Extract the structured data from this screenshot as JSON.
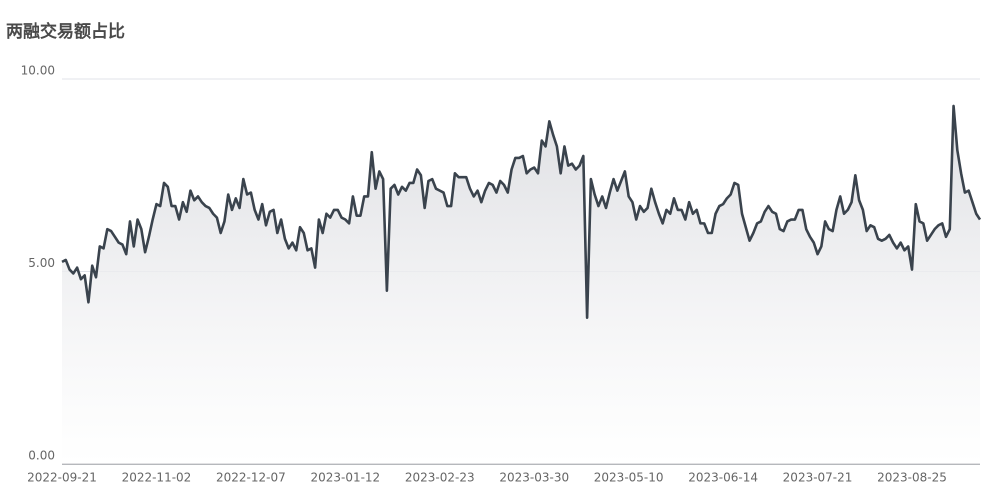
{
  "chart_data": {
    "type": "line",
    "title": "两融交易额占比",
    "categories": [
      "2022-09-21",
      null,
      null,
      null,
      null,
      null,
      null,
      null,
      null,
      null,
      null,
      null,
      null,
      null,
      null,
      null,
      null,
      null,
      null,
      null,
      null,
      null,
      null,
      null,
      null,
      "2022-11-02",
      null,
      null,
      null,
      null,
      null,
      null,
      null,
      null,
      null,
      null,
      null,
      null,
      null,
      null,
      null,
      null,
      null,
      null,
      null,
      null,
      null,
      null,
      null,
      null,
      "2022-12-07",
      null,
      null,
      null,
      null,
      null,
      null,
      null,
      null,
      null,
      null,
      null,
      null,
      null,
      null,
      null,
      null,
      null,
      null,
      null,
      null,
      null,
      null,
      null,
      null,
      "2023-01-12",
      null,
      null,
      null,
      null,
      null,
      null,
      null,
      null,
      null,
      null,
      null,
      null,
      null,
      null,
      null,
      null,
      null,
      null,
      null,
      null,
      null,
      null,
      null,
      null,
      "2023-02-23",
      null,
      null,
      null,
      null,
      null,
      null,
      null,
      null,
      null,
      null,
      null,
      null,
      null,
      null,
      null,
      null,
      null,
      null,
      null,
      null,
      null,
      null,
      null,
      null,
      "2023-03-30",
      null,
      null,
      null,
      null,
      null,
      null,
      null,
      null,
      null,
      null,
      null,
      null,
      null,
      null,
      null,
      null,
      null,
      null,
      null,
      null,
      null,
      null,
      null,
      null,
      "2023-05-10",
      null,
      null,
      null,
      null,
      null,
      null,
      null,
      null,
      null,
      null,
      null,
      null,
      null,
      null,
      null,
      null,
      null,
      null,
      null,
      null,
      null,
      null,
      null,
      null,
      "2023-06-14",
      null,
      null,
      null,
      null,
      null,
      null,
      null,
      null,
      null,
      null,
      null,
      null,
      null,
      null,
      null,
      null,
      null,
      null,
      null,
      null,
      null,
      null,
      null,
      null,
      "2023-07-21",
      null,
      null,
      null,
      null,
      null,
      null,
      null,
      null,
      null,
      null,
      null,
      null,
      null,
      null,
      null,
      null,
      null,
      null,
      null,
      null,
      null,
      null,
      null,
      null,
      "2023-08-25",
      null,
      null,
      null,
      null,
      null,
      null,
      null,
      null,
      null,
      null,
      null,
      null,
      null,
      null,
      null,
      null,
      null,
      null
    ],
    "values": [
      5.25,
      5.3,
      5.05,
      4.95,
      5.1,
      4.8,
      4.9,
      4.2,
      5.15,
      4.85,
      5.65,
      5.6,
      6.1,
      6.05,
      5.9,
      5.75,
      5.7,
      5.45,
      6.3,
      5.65,
      6.35,
      6.1,
      5.5,
      5.9,
      6.35,
      6.75,
      6.7,
      7.3,
      7.2,
      6.7,
      6.7,
      6.35,
      6.8,
      6.55,
      7.1,
      6.85,
      6.95,
      6.8,
      6.7,
      6.65,
      6.5,
      6.4,
      6.0,
      6.3,
      7.0,
      6.6,
      6.9,
      6.65,
      7.4,
      7.0,
      7.05,
      6.6,
      6.35,
      6.75,
      6.2,
      6.55,
      6.6,
      6.0,
      6.35,
      5.85,
      5.6,
      5.75,
      5.55,
      6.15,
      6.0,
      5.55,
      5.6,
      5.1,
      6.35,
      6.0,
      6.5,
      6.4,
      6.6,
      6.6,
      6.4,
      6.35,
      6.25,
      6.95,
      6.45,
      6.45,
      6.95,
      6.95,
      8.1,
      7.15,
      7.6,
      7.4,
      4.5,
      7.15,
      7.25,
      7.0,
      7.2,
      7.1,
      7.3,
      7.3,
      7.65,
      7.5,
      6.65,
      7.35,
      7.4,
      7.15,
      7.1,
      7.05,
      6.7,
      6.7,
      7.55,
      7.45,
      7.45,
      7.45,
      7.15,
      6.95,
      7.1,
      6.8,
      7.1,
      7.3,
      7.25,
      7.05,
      7.35,
      7.25,
      7.05,
      7.65,
      7.95,
      7.95,
      8.0,
      7.55,
      7.65,
      7.7,
      7.55,
      8.4,
      8.25,
      8.9,
      8.55,
      8.25,
      7.55,
      8.25,
      7.75,
      7.8,
      7.65,
      7.75,
      8.0,
      3.8,
      7.4,
      7.0,
      6.7,
      6.95,
      6.65,
      7.05,
      7.4,
      7.1,
      7.35,
      7.6,
      6.95,
      6.8,
      6.35,
      6.7,
      6.55,
      6.65,
      7.15,
      6.8,
      6.5,
      6.25,
      6.6,
      6.5,
      6.9,
      6.6,
      6.6,
      6.35,
      6.8,
      6.5,
      6.6,
      6.25,
      6.25,
      6.0,
      6.0,
      6.5,
      6.7,
      6.75,
      6.9,
      7.0,
      7.3,
      7.25,
      6.5,
      6.15,
      5.8,
      6.0,
      6.25,
      6.3,
      6.55,
      6.7,
      6.55,
      6.5,
      6.1,
      6.05,
      6.3,
      6.35,
      6.35,
      6.6,
      6.6,
      6.1,
      5.9,
      5.75,
      5.45,
      5.65,
      6.3,
      6.1,
      6.05,
      6.6,
      6.95,
      6.5,
      6.6,
      6.8,
      7.5,
      6.85,
      6.6,
      6.05,
      6.2,
      6.15,
      5.85,
      5.8,
      5.85,
      5.95,
      5.75,
      5.6,
      5.75,
      5.55,
      5.65,
      5.05,
      6.75,
      6.3,
      6.25,
      5.8,
      5.95,
      6.1,
      6.2,
      6.25,
      5.9,
      6.1,
      9.3,
      8.15,
      7.55,
      7.05,
      7.1,
      6.8,
      6.5,
      6.35
    ],
    "color": "#3a434d",
    "area": true,
    "grid": true,
    "ylim": [
      0,
      10
    ],
    "yticks": [
      {
        "value": 0,
        "label": "0.00"
      },
      {
        "value": 5,
        "label": "5.00"
      },
      {
        "value": 10,
        "label": "10.00"
      }
    ]
  }
}
